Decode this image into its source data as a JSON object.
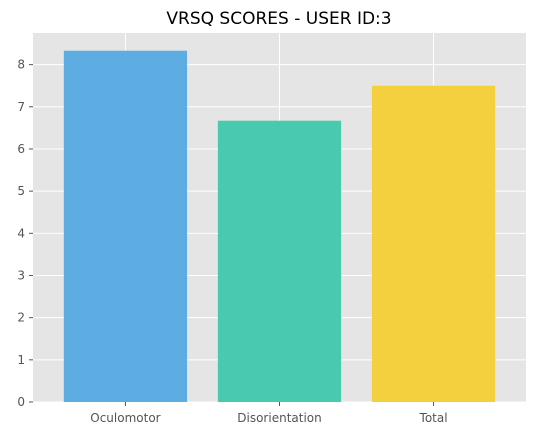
{
  "chart_data": {
    "type": "bar",
    "title": "VRSQ SCORES - USER ID:3",
    "xlabel": "",
    "ylabel": "",
    "categories": [
      "Oculomotor",
      "Disorientation",
      "Total"
    ],
    "values": [
      8.33,
      6.67,
      7.5
    ],
    "colors": [
      "#5DADE2",
      "#48C9B0",
      "#F4D03F"
    ],
    "ylim": [
      0,
      8.75
    ],
    "yticks": [
      "0",
      "1",
      "2",
      "3",
      "4",
      "5",
      "6",
      "7",
      "8"
    ],
    "grid": true,
    "background": "#E5E5E5"
  }
}
